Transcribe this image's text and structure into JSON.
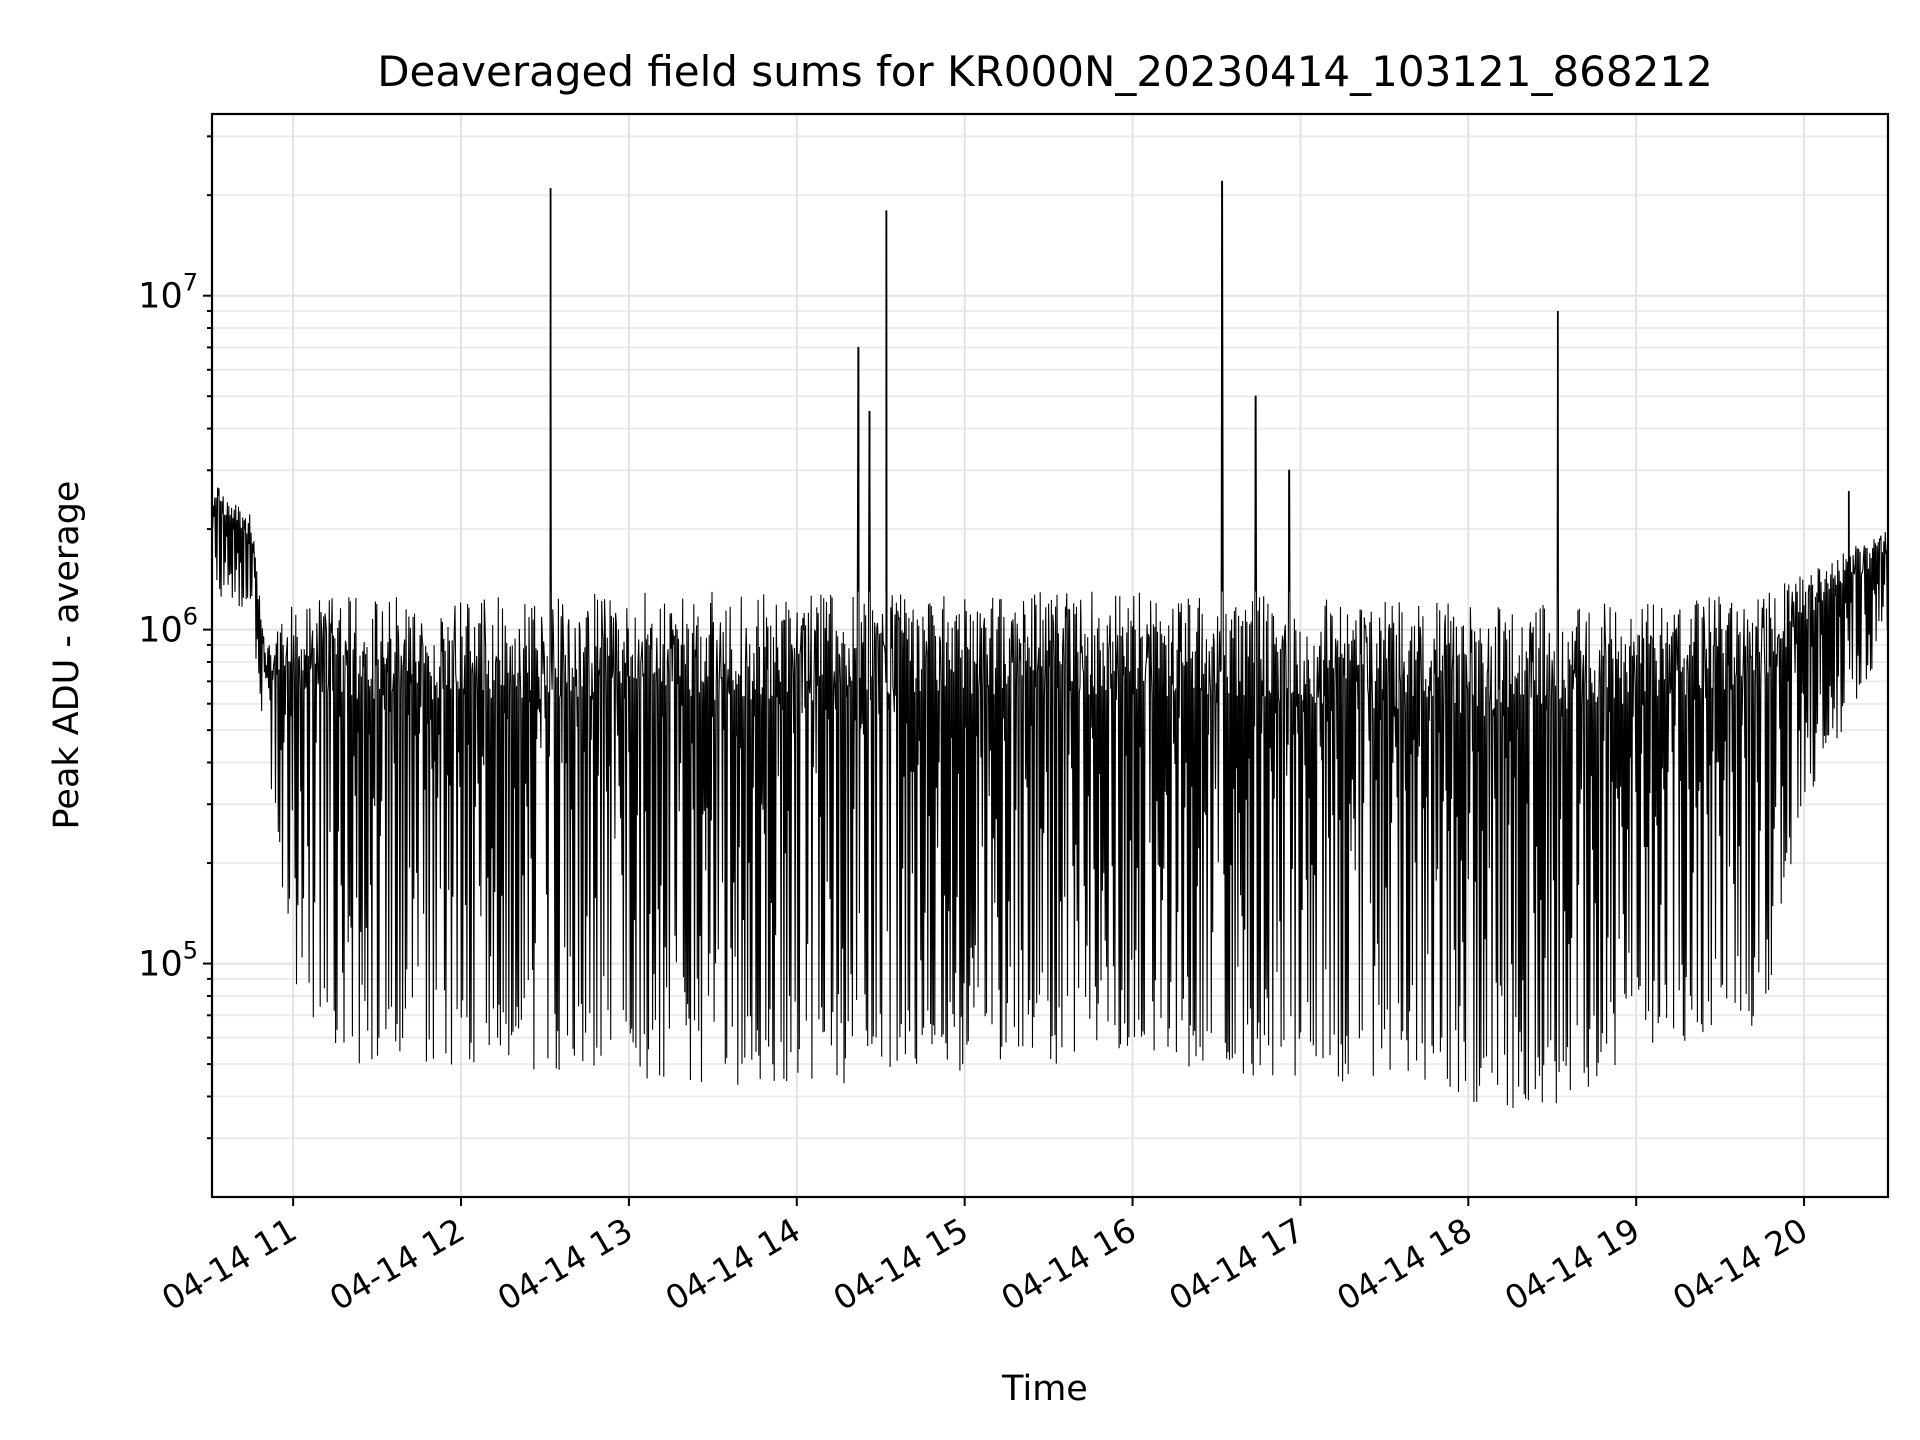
{
  "chart_data": {
    "type": "line",
    "title": "Deaveraged field sums for KR000N_20230414_103121_868212",
    "xlabel": "Time",
    "ylabel": "Peak ADU - average",
    "yscale": "log",
    "grid": true,
    "line_color": "#000000",
    "xlim": [
      "2023-04-14 10:31",
      "2023-04-14 20:30"
    ],
    "ylim": [
      20000,
      35000000
    ],
    "xticks": [
      {
        "value": "2023-04-14 11:00",
        "label": "04-14 11"
      },
      {
        "value": "2023-04-14 12:00",
        "label": "04-14 12"
      },
      {
        "value": "2023-04-14 13:00",
        "label": "04-14 13"
      },
      {
        "value": "2023-04-14 14:00",
        "label": "04-14 14"
      },
      {
        "value": "2023-04-14 15:00",
        "label": "04-14 15"
      },
      {
        "value": "2023-04-14 16:00",
        "label": "04-14 16"
      },
      {
        "value": "2023-04-14 17:00",
        "label": "04-14 17"
      },
      {
        "value": "2023-04-14 18:00",
        "label": "04-14 18"
      },
      {
        "value": "2023-04-14 19:00",
        "label": "04-14 19"
      },
      {
        "value": "2023-04-14 20:00",
        "label": "04-14 20"
      }
    ],
    "yticks": [
      {
        "value": 100000,
        "base": "10",
        "exp": "5"
      },
      {
        "value": 1000000,
        "base": "10",
        "exp": "6"
      },
      {
        "value": 10000000,
        "base": "10",
        "exp": "7"
      }
    ],
    "spikes": [
      {
        "time": "2023-04-14 12:32",
        "value": 21000000
      },
      {
        "time": "2023-04-14 14:22",
        "value": 7000000
      },
      {
        "time": "2023-04-14 14:26",
        "value": 4500000
      },
      {
        "time": "2023-04-14 14:32",
        "value": 18000000
      },
      {
        "time": "2023-04-14 16:32",
        "value": 22000000
      },
      {
        "time": "2023-04-14 16:44",
        "value": 5000000
      },
      {
        "time": "2023-04-14 16:56",
        "value": 3000000
      },
      {
        "time": "2023-04-14 18:32",
        "value": 9000000
      },
      {
        "time": "2023-04-14 20:16",
        "value": 2600000
      }
    ],
    "envelope": [
      {
        "time": "2023-04-14 10:31",
        "high": 2800000,
        "low": 1300000
      },
      {
        "time": "2023-04-14 10:45",
        "high": 2200000,
        "low": 1100000
      },
      {
        "time": "2023-04-14 10:50",
        "high": 900000,
        "low": 450000
      },
      {
        "time": "2023-04-14 11:00",
        "high": 1200000,
        "low": 90000
      },
      {
        "time": "2023-04-14 11:15",
        "high": 1250000,
        "low": 50000
      },
      {
        "time": "2023-04-14 12:00",
        "high": 1250000,
        "low": 48000
      },
      {
        "time": "2023-04-14 13:00",
        "high": 1300000,
        "low": 45000
      },
      {
        "time": "2023-04-14 14:00",
        "high": 1300000,
        "low": 42000
      },
      {
        "time": "2023-04-14 15:00",
        "high": 1300000,
        "low": 48000
      },
      {
        "time": "2023-04-14 16:00",
        "high": 1300000,
        "low": 52000
      },
      {
        "time": "2023-04-14 17:00",
        "high": 1250000,
        "low": 42000
      },
      {
        "time": "2023-04-14 18:00",
        "high": 1200000,
        "low": 35000
      },
      {
        "time": "2023-04-14 18:30",
        "high": 1200000,
        "low": 35000
      },
      {
        "time": "2023-04-14 19:00",
        "high": 1200000,
        "low": 55000
      },
      {
        "time": "2023-04-14 19:45",
        "high": 1300000,
        "low": 65000
      },
      {
        "time": "2023-04-14 20:00",
        "high": 1500000,
        "low": 300000
      },
      {
        "time": "2023-04-14 20:30",
        "high": 2000000,
        "low": 900000
      }
    ]
  }
}
